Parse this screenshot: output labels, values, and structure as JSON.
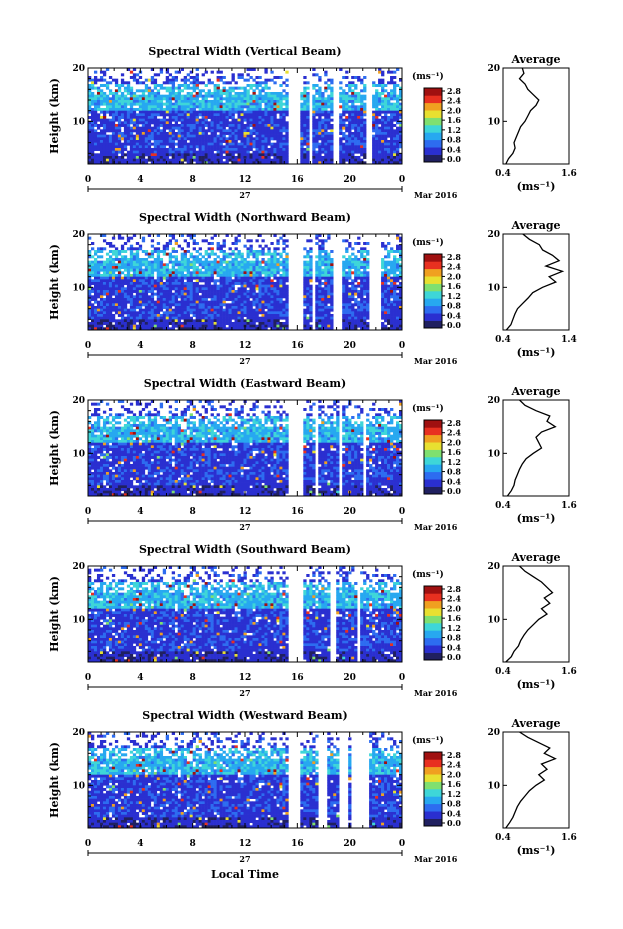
{
  "figure": {
    "date_label": "Mar 2016",
    "day_label": "27",
    "x_axis_label": "Local Time",
    "y_axis_label": "Height (km)",
    "colorbar_unit": "(ms⁻¹)",
    "average_title": "Average",
    "average_unit": "(ms⁻¹)"
  },
  "chart_data": [
    {
      "type": "heatmap",
      "title": "Spectral Width (Vertical Beam)",
      "x_ticks": [
        "0",
        "4",
        "8",
        "12",
        "16",
        "20",
        "0"
      ],
      "xlim": [
        0,
        24
      ],
      "y_ticks": [
        "20",
        "10"
      ],
      "ylim": [
        2,
        20
      ],
      "colorbar": {
        "ticks": [
          "2.8",
          "2.4",
          "2.0",
          "1.6",
          "1.2",
          "0.8",
          "0.4",
          "0.0"
        ],
        "range": [
          0.0,
          3.0
        ],
        "colors": [
          "#202060",
          "#2a2fd0",
          "#2d6cf0",
          "#27a8f0",
          "#3ed6d8",
          "#7fe070",
          "#e8e030",
          "#f0a020",
          "#e83020",
          "#a01010"
        ]
      },
      "gaps_hours": [
        [
          15.3,
          16.2
        ],
        [
          16.9,
          17.2
        ],
        [
          18.7,
          19.3
        ],
        [
          21.3,
          21.6
        ]
      ],
      "average": {
        "title": "Average",
        "xticks": [
          "0.4",
          "1.6"
        ],
        "xlim": [
          0.4,
          1.6
        ],
        "yticks": [
          "20",
          "10"
        ],
        "heights": [
          2,
          3,
          4,
          5,
          6,
          7,
          8,
          9,
          10,
          11,
          12,
          13,
          14,
          15,
          16,
          17,
          18,
          19,
          20
        ],
        "values": [
          0.45,
          0.5,
          0.58,
          0.62,
          0.6,
          0.64,
          0.68,
          0.72,
          0.8,
          0.85,
          0.9,
          1.0,
          1.05,
          0.95,
          0.85,
          0.8,
          0.7,
          0.78,
          0.75
        ]
      }
    },
    {
      "type": "heatmap",
      "title": "Spectral Width (Northward Beam)",
      "x_ticks": [
        "0",
        "4",
        "8",
        "12",
        "16",
        "20",
        "0"
      ],
      "xlim": [
        0,
        24
      ],
      "y_ticks": [
        "20",
        "10"
      ],
      "ylim": [
        2,
        20
      ],
      "colorbar": {
        "ticks": [
          "2.8",
          "2.4",
          "2.0",
          "1.6",
          "1.2",
          "0.8",
          "0.4",
          "0.0"
        ],
        "range": [
          0.0,
          3.0
        ],
        "colors": [
          "#202060",
          "#2a2fd0",
          "#2d6cf0",
          "#27a8f0",
          "#3ed6d8",
          "#7fe070",
          "#e8e030",
          "#f0a020",
          "#e83020",
          "#a01010"
        ]
      },
      "gaps_hours": [
        [
          15.4,
          16.4
        ],
        [
          17.1,
          17.4
        ],
        [
          18.8,
          19.5
        ],
        [
          21.4,
          22.3
        ]
      ],
      "average": {
        "title": "Average",
        "xticks": [
          "0.4",
          "1.4"
        ],
        "xlim": [
          0.4,
          1.4
        ],
        "yticks": [
          "20",
          "10"
        ],
        "heights": [
          2,
          3,
          4,
          5,
          6,
          7,
          8,
          9,
          10,
          11,
          12,
          13,
          14,
          15,
          16,
          17,
          18,
          19,
          20
        ],
        "values": [
          0.45,
          0.52,
          0.55,
          0.58,
          0.62,
          0.7,
          0.78,
          0.85,
          1.0,
          1.2,
          1.1,
          1.3,
          1.05,
          1.25,
          1.15,
          1.0,
          0.95,
          0.8,
          0.7
        ]
      }
    },
    {
      "type": "heatmap",
      "title": "Spectral Width (Eastward Beam)",
      "x_ticks": [
        "0",
        "4",
        "8",
        "12",
        "16",
        "20",
        "0"
      ],
      "xlim": [
        0,
        24
      ],
      "y_ticks": [
        "20",
        "10"
      ],
      "ylim": [
        2,
        20
      ],
      "colorbar": {
        "ticks": [
          "2.8",
          "2.4",
          "2.0",
          "1.6",
          "1.2",
          "0.8",
          "0.4",
          "0.0"
        ],
        "range": [
          0.0,
          3.0
        ],
        "colors": [
          "#202060",
          "#2a2fd0",
          "#2d6cf0",
          "#27a8f0",
          "#3ed6d8",
          "#7fe070",
          "#e8e030",
          "#f0a020",
          "#e83020",
          "#a01010"
        ]
      },
      "gaps_hours": [
        [
          15.4,
          16.4
        ],
        [
          17.3,
          17.5
        ],
        [
          19.1,
          19.4
        ],
        [
          21.0,
          21.3
        ]
      ],
      "average": {
        "title": "Average",
        "xticks": [
          "0.4",
          "1.6"
        ],
        "xlim": [
          0.4,
          1.6
        ],
        "yticks": [
          "20",
          "10"
        ],
        "heights": [
          2,
          3,
          4,
          5,
          6,
          7,
          8,
          9,
          10,
          11,
          12,
          13,
          14,
          15,
          16,
          17,
          18,
          19,
          20
        ],
        "values": [
          0.48,
          0.55,
          0.6,
          0.62,
          0.66,
          0.7,
          0.75,
          0.82,
          0.95,
          1.1,
          1.05,
          1.0,
          1.1,
          1.35,
          1.2,
          1.25,
          1.0,
          0.8,
          0.7
        ]
      }
    },
    {
      "type": "heatmap",
      "title": "Spectral Width (Southward Beam)",
      "x_ticks": [
        "0",
        "4",
        "8",
        "12",
        "16",
        "20",
        "0"
      ],
      "xlim": [
        0,
        24
      ],
      "y_ticks": [
        "20",
        "10"
      ],
      "ylim": [
        2,
        20
      ],
      "colorbar": {
        "ticks": [
          "2.8",
          "2.4",
          "2.0",
          "1.6",
          "1.2",
          "0.8",
          "0.4",
          "0.0"
        ],
        "range": [
          0.0,
          3.0
        ],
        "colors": [
          "#202060",
          "#2a2fd0",
          "#2d6cf0",
          "#27a8f0",
          "#3ed6d8",
          "#7fe070",
          "#e8e030",
          "#f0a020",
          "#e83020",
          "#a01010"
        ]
      },
      "gaps_hours": [
        [
          15.3,
          16.5
        ],
        [
          18.6,
          19.0
        ],
        [
          20.6,
          20.8
        ]
      ],
      "average": {
        "title": "Average",
        "xticks": [
          "0.4",
          "1.6"
        ],
        "xlim": [
          0.4,
          1.6
        ],
        "yticks": [
          "20",
          "10"
        ],
        "heights": [
          2,
          3,
          4,
          5,
          6,
          7,
          8,
          9,
          10,
          11,
          12,
          13,
          14,
          15,
          16,
          17,
          18,
          19,
          20
        ],
        "values": [
          0.45,
          0.55,
          0.6,
          0.68,
          0.72,
          0.78,
          0.85,
          0.95,
          1.05,
          1.2,
          1.1,
          1.25,
          1.15,
          1.3,
          1.2,
          1.1,
          0.95,
          0.8,
          0.7
        ]
      }
    },
    {
      "type": "heatmap",
      "title": "Spectral Width (Westward Beam)",
      "x_ticks": [
        "0",
        "4",
        "8",
        "12",
        "16",
        "20",
        "0"
      ],
      "xlim": [
        0,
        24
      ],
      "y_ticks": [
        "20",
        "10"
      ],
      "ylim": [
        2,
        20
      ],
      "colorbar": {
        "ticks": [
          "2.8",
          "2.4",
          "2.0",
          "1.6",
          "1.2",
          "0.8",
          "0.4",
          "0.0"
        ],
        "range": [
          0.0,
          3.0
        ],
        "colors": [
          "#202060",
          "#2a2fd0",
          "#2d6cf0",
          "#27a8f0",
          "#3ed6d8",
          "#7fe070",
          "#e8e030",
          "#f0a020",
          "#e83020",
          "#a01010"
        ]
      },
      "gaps_hours": [
        [
          15.4,
          16.3
        ],
        [
          17.6,
          18.4
        ],
        [
          19.3,
          19.8
        ],
        [
          20.2,
          21.4
        ]
      ],
      "average": {
        "title": "Average",
        "xticks": [
          "0.4",
          "1.6"
        ],
        "xlim": [
          0.4,
          1.6
        ],
        "yticks": [
          "20",
          "10"
        ],
        "heights": [
          2,
          3,
          4,
          5,
          6,
          7,
          8,
          9,
          10,
          11,
          12,
          13,
          14,
          15,
          16,
          17,
          18,
          19,
          20
        ],
        "values": [
          0.45,
          0.52,
          0.58,
          0.62,
          0.66,
          0.72,
          0.8,
          0.88,
          1.0,
          1.15,
          1.05,
          1.2,
          1.1,
          1.35,
          1.15,
          1.25,
          1.05,
          0.85,
          0.7
        ]
      }
    }
  ]
}
